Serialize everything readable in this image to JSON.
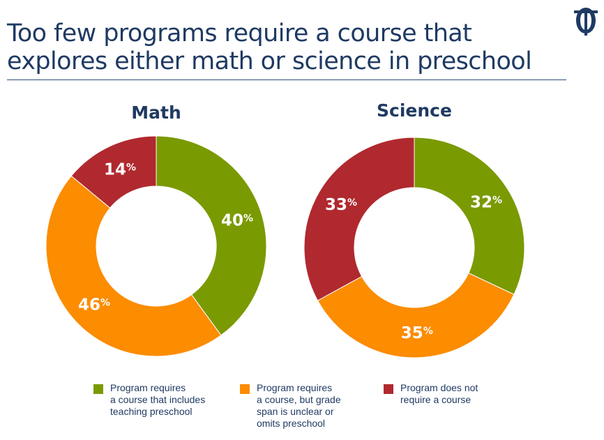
{
  "slide": {
    "title": "Too few programs require a course that\nexplores either math or science in preschool"
  },
  "colors": {
    "green": "#7a9a01",
    "orange": "#fc8c00",
    "red": "#b0292f",
    "navy": "#1f3a63"
  },
  "legend": [
    {
      "label": "Program requires\na course that includes\nteaching preschool",
      "color": "#7a9a01"
    },
    {
      "label": "Program requires\na course, but grade\nspan is unclear or\nomits preschool",
      "color": "#fc8c00"
    },
    {
      "label": "Program does not\nrequire a course",
      "color": "#b0292f"
    }
  ],
  "chart_data": [
    {
      "type": "pie",
      "title": "Math",
      "categories": [
        "Program requires a course that includes teaching preschool",
        "Program requires a course, but grade span is unclear or omits preschool",
        "Program does not require a course"
      ],
      "values": [
        40,
        46,
        14
      ],
      "labels": [
        "40",
        "46",
        "14"
      ],
      "unit": "%",
      "colors": [
        "#7a9a01",
        "#fc8c00",
        "#b0292f"
      ],
      "legend": "bottom"
    },
    {
      "type": "pie",
      "title": "Science",
      "categories": [
        "Program requires a course that includes teaching preschool",
        "Program requires a course, but grade span is unclear or omits preschool",
        "Program does not require a course"
      ],
      "values": [
        32,
        35,
        33
      ],
      "labels": [
        "32",
        "35",
        "33"
      ],
      "unit": "%",
      "colors": [
        "#7a9a01",
        "#fc8c00",
        "#b0292f"
      ],
      "legend": "bottom"
    }
  ]
}
